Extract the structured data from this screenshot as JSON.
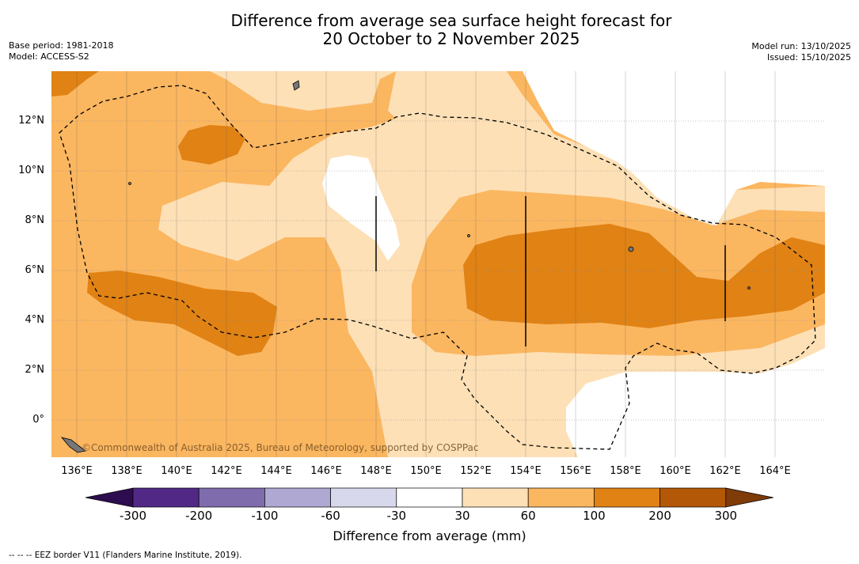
{
  "title_line1": "Difference from average sea surface height forecast for",
  "title_line2": "20 October to 2 November 2025",
  "base_period": "Base period: 1981-2018",
  "model": "Model: ACCESS-S2",
  "model_run": "Model run: 13/10/2025",
  "issued": "Issued: 15/10/2025",
  "copyright": "©Commonwealth of Australia 2025, Bureau of Meteorology, supported by COSPPac",
  "longitude_labels": [
    "136°E",
    "138°E",
    "140°E",
    "142°E",
    "144°E",
    "146°E",
    "148°E",
    "150°E",
    "152°E",
    "154°E",
    "156°E",
    "158°E",
    "160°E",
    "162°E",
    "164°E"
  ],
  "latitude_labels": [
    "12°N",
    "10°N",
    "8°N",
    "6°N",
    "4°N",
    "2°N",
    "0°"
  ],
  "colorbar": {
    "ticks": [
      "-300",
      "-200",
      "-100",
      "-60",
      "-30",
      "30",
      "60",
      "100",
      "200",
      "300"
    ],
    "label": "Difference from average (mm)",
    "colors": [
      "#2d0c4f",
      "#512886",
      "#7e6cad",
      "#aea8d3",
      "#d8d8ec",
      "#ffffff",
      "#fde0b6",
      "#fbb660",
      "#e08214",
      "#b35806",
      "#7f3b08"
    ]
  },
  "footnote": "-- -- -- EEZ border V11 (Flanders Marine Institute, 2019)."
}
